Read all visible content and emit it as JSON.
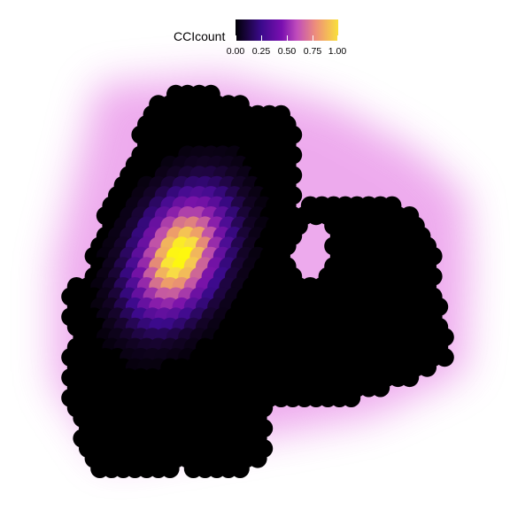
{
  "chart_data": {
    "type": "scatter",
    "subtype": "spatial-spot-map",
    "legend": {
      "title": "CCIcount",
      "ticks": [
        "0.00",
        "0.25",
        "0.50",
        "0.75",
        "1.00"
      ],
      "tick_values": [
        0,
        0.25,
        0.5,
        0.75,
        1.0
      ],
      "range": [
        0,
        1
      ],
      "colormap": "plasma-like",
      "colors": [
        "#000004",
        "#3b0a8c",
        "#7a0fb0",
        "#c04dbb",
        "#ee8f7a",
        "#f9e03a",
        "#ffff00"
      ],
      "placement": "top-center"
    },
    "background_color": "#ffffff",
    "density_halo_color": "#e066e0",
    "hotspot": {
      "cx": 0.5,
      "cy": 0.5,
      "peak_value": 1.0
    },
    "axes": {
      "visible": false,
      "grid": false
    }
  }
}
